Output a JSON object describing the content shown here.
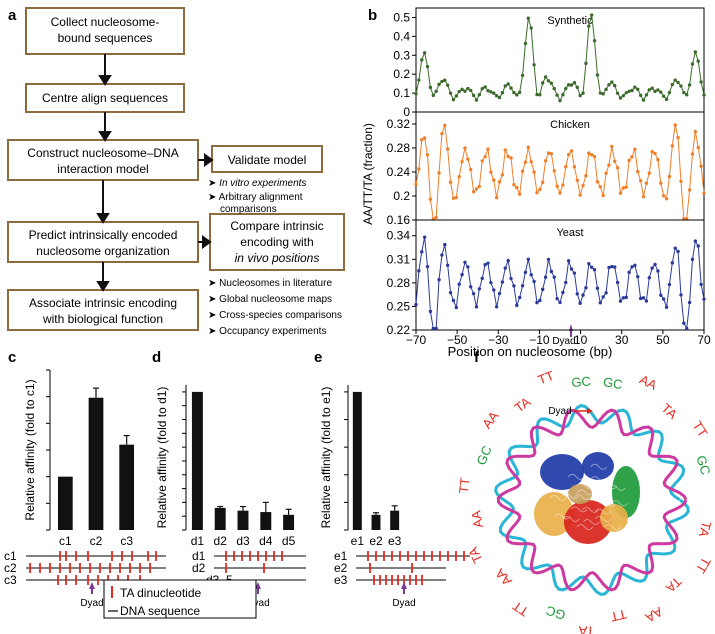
{
  "panels": {
    "a": "a",
    "b": "b",
    "c": "c",
    "d": "d",
    "e": "e",
    "f": "f"
  },
  "flow": {
    "boxes": [
      [
        "Collect nucleosome-",
        "bound sequences"
      ],
      [
        "Centre align sequences"
      ],
      [
        "Construct nucleosome–DNA",
        "interaction model"
      ],
      [
        "Predict intrinsically encoded",
        "nucleosome organization"
      ],
      [
        "Associate intrinsic encoding",
        "with biological function"
      ]
    ],
    "side_boxes": [
      {
        "lines": [
          "Validate model"
        ],
        "bullets": [
          "In vitro experiments",
          "Arbitrary alignment",
          "comparisons"
        ]
      },
      {
        "lines": [
          "Compare intrinsic",
          "encoding with",
          "in vivo positions"
        ],
        "bullets": [
          "Nucleosomes in literature",
          "Global nucleosome maps",
          "Cross-species comparisons",
          "Occupancy experiments"
        ]
      }
    ]
  },
  "chart_b": {
    "ylabel": "AA/TT/TA (fraction)",
    "xlabel": "Position on nucleosome (bp)",
    "dyad": "Dyad",
    "xticks": [
      "−70",
      "−50",
      "−30",
      "−10",
      "10",
      "30",
      "50",
      "70"
    ],
    "series": [
      {
        "name": "Synthetic",
        "color": "#3a6b2a",
        "ymin": 0,
        "ymax": 0.55,
        "yticks": [
          "0",
          "0.1",
          "0.2",
          "0.3",
          "0.4",
          "0.5"
        ]
      },
      {
        "name": "Chicken",
        "color": "#f07f2a",
        "ymin": 0.16,
        "ymax": 0.34,
        "yticks": [
          "0.16",
          "0.2",
          "0.24",
          "0.28",
          "0.32"
        ]
      },
      {
        "name": "Yeast",
        "color": "#2b3a9a",
        "ymin": 0.22,
        "ymax": 0.36,
        "yticks": [
          "0.22",
          "0.25",
          "0.28",
          "0.31",
          "0.34"
        ]
      }
    ]
  },
  "chart_data": [
    {
      "type": "bar",
      "categories": [
        "c1",
        "c2",
        "c3"
      ],
      "values": [
        1.0,
        2.48,
        1.6
      ],
      "errors": [
        0,
        0.18,
        0.17
      ],
      "ylabel": "Relative affinity (fold to c1)",
      "yticks": [
        "0",
        "0.5",
        "1",
        "1.5",
        "2",
        "2.5",
        "3"
      ],
      "ylim": [
        0,
        3
      ]
    },
    {
      "type": "bar",
      "categories": [
        "d1",
        "d2",
        "d3",
        "d4",
        "d5"
      ],
      "values": [
        1.0,
        0.16,
        0.14,
        0.13,
        0.11
      ],
      "errors": [
        0,
        0.01,
        0.03,
        0.07,
        0.04
      ],
      "ylabel": "Relative affinity (fold to d1)",
      "yticks": [
        "0",
        "0.1",
        "0.2",
        "0.3",
        "0.4",
        "0.5",
        "0.6",
        "0.7",
        "0.8",
        "0.9",
        "1"
      ],
      "ylim": [
        0,
        1.05
      ]
    },
    {
      "type": "bar",
      "categories": [
        "e1",
        "e2",
        "e3"
      ],
      "values": [
        1.0,
        0.11,
        0.14
      ],
      "errors": [
        0,
        0.015,
        0.035
      ],
      "ylabel": "Relative affinity (fold to e1)",
      "yticks": [
        "0",
        "0.2",
        "0.4",
        "0.6",
        "0.8",
        "1"
      ],
      "ylim": [
        0,
        1.05
      ]
    }
  ],
  "seq": {
    "c": [
      "c1",
      "c2",
      "c3"
    ],
    "d": [
      "d1",
      "d2",
      "d3–5"
    ],
    "e": [
      "e1",
      "e2",
      "e3"
    ],
    "dyad": "Dyad",
    "legend_ta": "TA dinucleotide",
    "legend_dna": "DNA sequence"
  },
  "struct": {
    "dyad": "Dyad",
    "labels": [
      "GC",
      "AA",
      "TA",
      "TT",
      "GC",
      "AA",
      "TA",
      "TT",
      "TA",
      "AA",
      "TT",
      "TA",
      "GC",
      "TT",
      "AA",
      "TA",
      "AA",
      "TT",
      "GC",
      "AA",
      "TA",
      "TT",
      "GC"
    ],
    "colors": {
      "ta": "#e8281e",
      "gc": "#1e9a3a",
      "dna_a": "#2ab5d6",
      "dna_b": "#cc3aa0"
    }
  }
}
